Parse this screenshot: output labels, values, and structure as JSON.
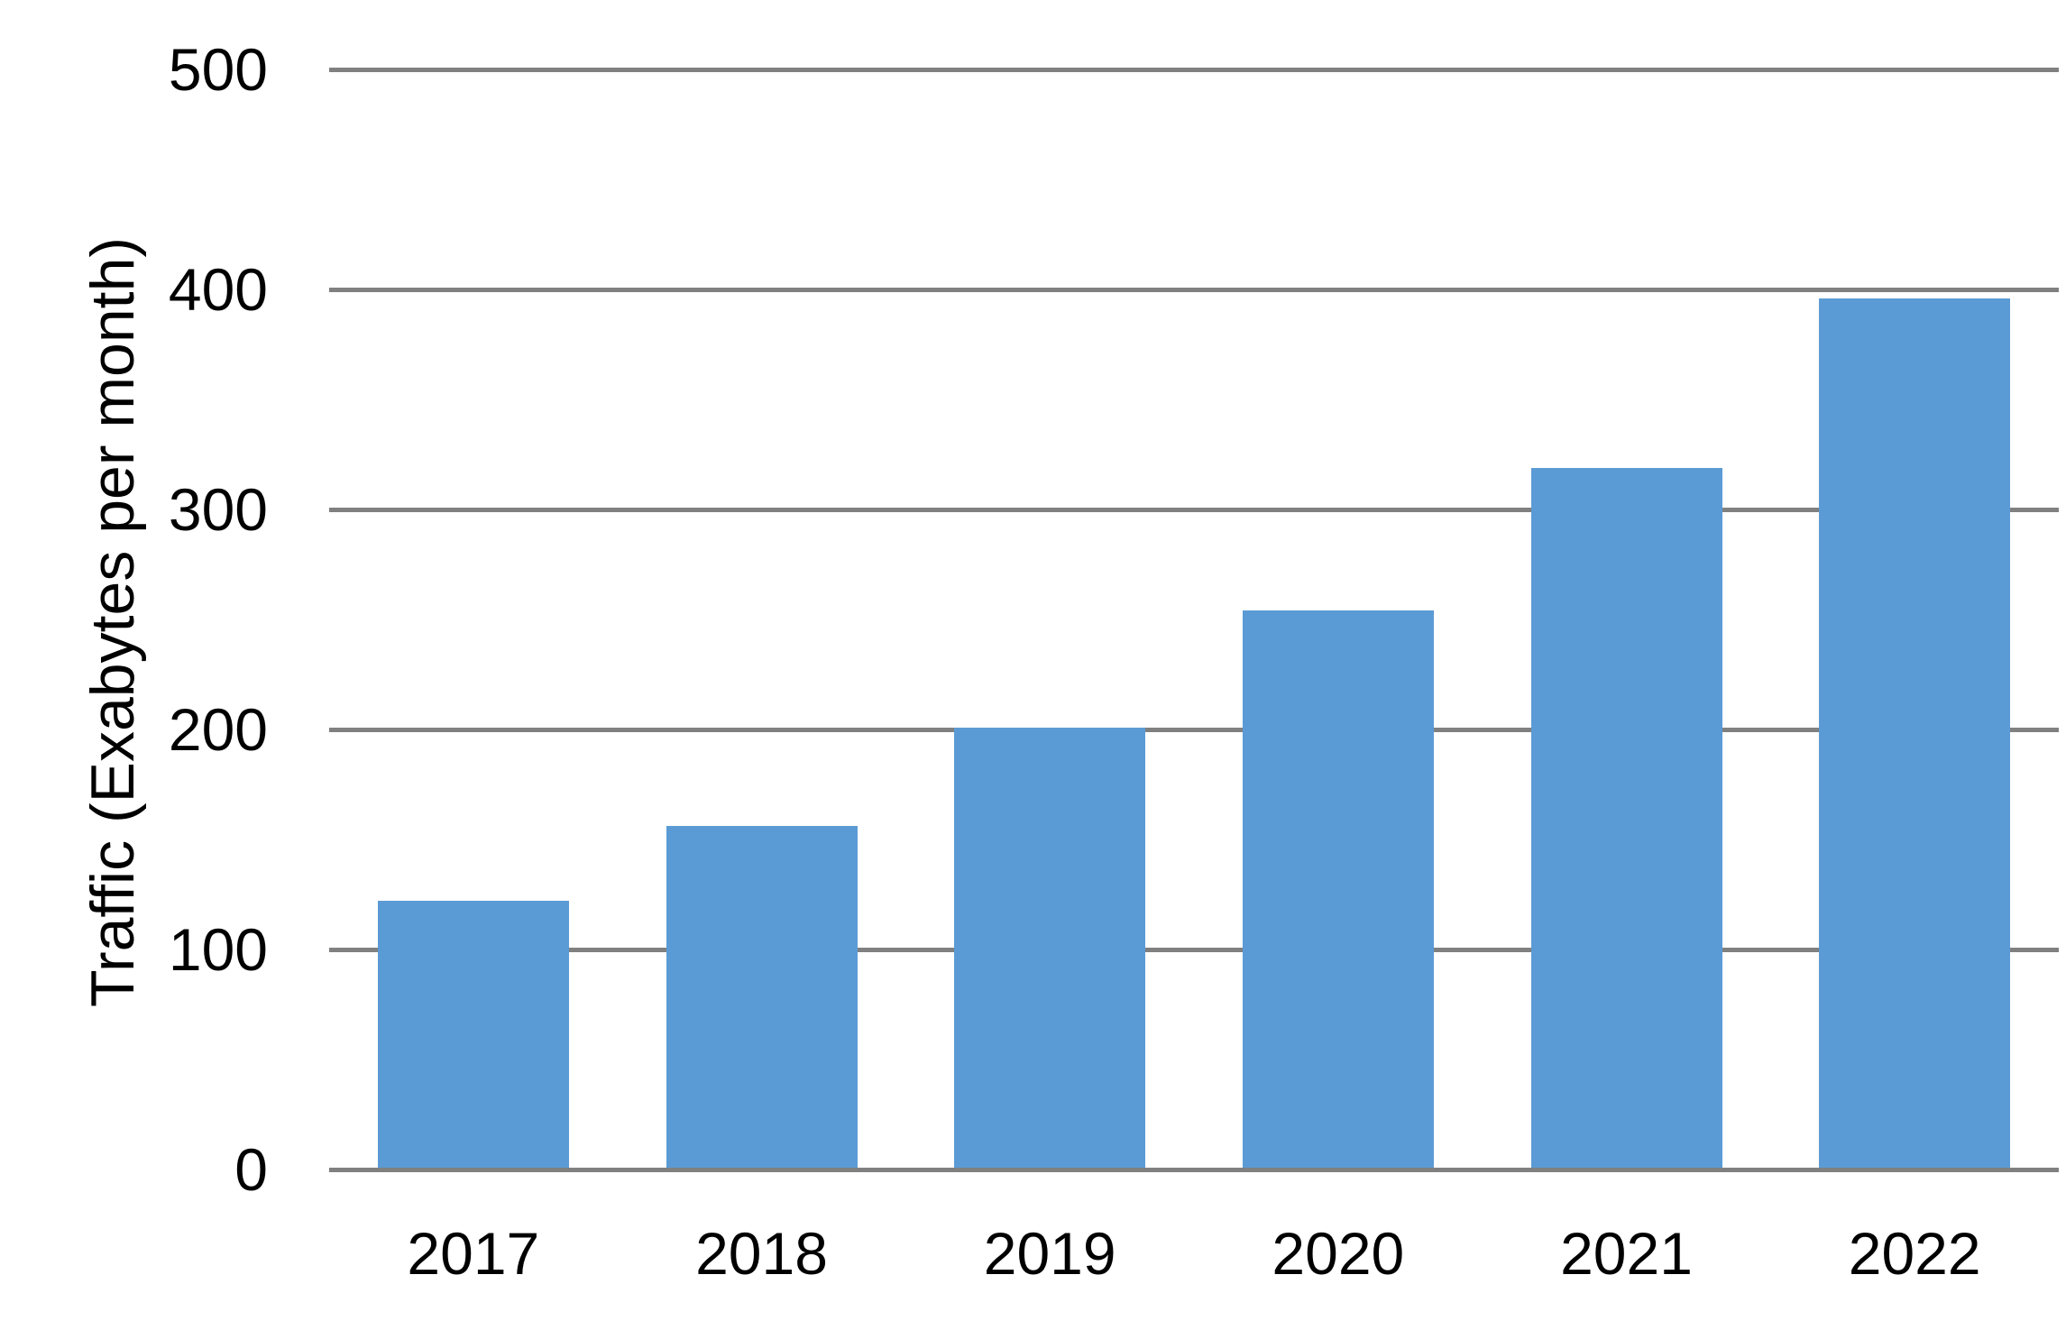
{
  "chart_data": {
    "type": "bar",
    "categories": [
      "2017",
      "2018",
      "2019",
      "2020",
      "2021",
      "2022"
    ],
    "values": [
      122,
      156,
      201,
      254,
      319,
      396
    ],
    "title": "",
    "xlabel": "",
    "ylabel": "Traffic (Exabytes per month)",
    "ylim": [
      0,
      500
    ],
    "yticks": [
      0,
      100,
      200,
      300,
      400,
      500
    ],
    "grid": "horizontal-only",
    "legend": "none",
    "bar_color": "#5B9BD5",
    "gridline_color": "#808080",
    "text_color": "#000000",
    "background_color": "#FFFFFF"
  }
}
